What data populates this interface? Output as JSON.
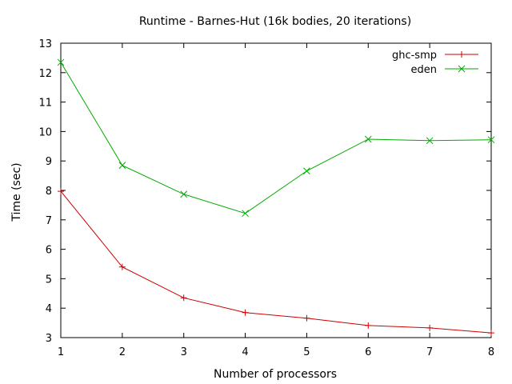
{
  "chart_data": {
    "type": "line",
    "title": "Runtime - Barnes-Hut (16k bodies, 20 iterations)",
    "xlabel": "Number of processors",
    "ylabel": "Time (sec)",
    "x": [
      1,
      2,
      3,
      4,
      5,
      6,
      7,
      8
    ],
    "xlim": [
      1,
      8
    ],
    "ylim": [
      3,
      13
    ],
    "xticks": [
      "1",
      "2",
      "3",
      "4",
      "5",
      "6",
      "7",
      "8"
    ],
    "yticks": [
      "3",
      "4",
      "5",
      "6",
      "7",
      "8",
      "9",
      "10",
      "11",
      "12",
      "13"
    ],
    "grid": false,
    "legend_position": "top-right",
    "series": [
      {
        "name": "ghc-smp",
        "marker": "plus",
        "color": "#cc0000",
        "values": [
          7.97,
          5.4,
          4.35,
          3.85,
          3.66,
          3.41,
          3.33,
          3.16
        ]
      },
      {
        "name": "eden",
        "marker": "cross",
        "color": "#00aa00",
        "values": [
          12.35,
          8.85,
          7.87,
          7.22,
          8.66,
          9.74,
          9.69,
          9.72
        ]
      }
    ]
  }
}
